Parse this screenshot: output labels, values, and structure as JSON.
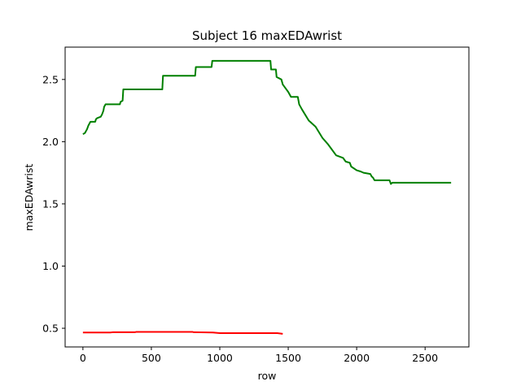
{
  "chart_data": {
    "type": "line",
    "title": "Subject 16 maxEDAwrist",
    "xlabel": "row",
    "ylabel": "maxEDAwrist",
    "xlim": [
      -130,
      2820
    ],
    "ylim": [
      0.35,
      2.76
    ],
    "xticks": [
      0,
      500,
      1000,
      1500,
      2000,
      2500
    ],
    "xtick_labels": [
      "0",
      "500",
      "1000",
      "1500",
      "2000",
      "2500"
    ],
    "yticks": [
      0.5,
      1.0,
      1.5,
      2.0,
      2.5
    ],
    "ytick_labels": [
      "0.5",
      "1.0",
      "1.5",
      "2.0",
      "2.5"
    ],
    "grid": false,
    "series": [
      {
        "color": "#008000",
        "x": [
          0,
          15,
          30,
          40,
          50,
          55,
          90,
          95,
          105,
          130,
          140,
          150,
          155,
          160,
          165,
          270,
          275,
          290,
          295,
          580,
          585,
          820,
          825,
          940,
          945,
          1370,
          1375,
          1410,
          1415,
          1450,
          1460,
          1480,
          1500,
          1520,
          1570,
          1580,
          1600,
          1650,
          1700,
          1750,
          1790,
          1810,
          1850,
          1900,
          1920,
          1950,
          1960,
          2000,
          2030,
          2050,
          2100,
          2110,
          2120,
          2130,
          2160,
          2240,
          2250,
          2260,
          2270,
          2690
        ],
        "y": [
          2.06,
          2.07,
          2.1,
          2.13,
          2.15,
          2.16,
          2.16,
          2.18,
          2.19,
          2.2,
          2.22,
          2.25,
          2.28,
          2.29,
          2.3,
          2.3,
          2.32,
          2.33,
          2.42,
          2.42,
          2.53,
          2.53,
          2.6,
          2.6,
          2.65,
          2.65,
          2.58,
          2.58,
          2.52,
          2.5,
          2.46,
          2.43,
          2.4,
          2.36,
          2.36,
          2.3,
          2.26,
          2.17,
          2.12,
          2.03,
          1.98,
          1.95,
          1.89,
          1.87,
          1.84,
          1.83,
          1.8,
          1.77,
          1.76,
          1.75,
          1.74,
          1.72,
          1.71,
          1.69,
          1.69,
          1.69,
          1.66,
          1.67,
          1.67,
          1.67
        ]
      },
      {
        "color": "#ff0000",
        "x": [
          0,
          200,
          220,
          380,
          390,
          800,
          810,
          950,
          1000,
          1420,
          1460
        ],
        "y": [
          0.466,
          0.466,
          0.468,
          0.468,
          0.471,
          0.471,
          0.468,
          0.466,
          0.461,
          0.461,
          0.455
        ]
      }
    ]
  }
}
